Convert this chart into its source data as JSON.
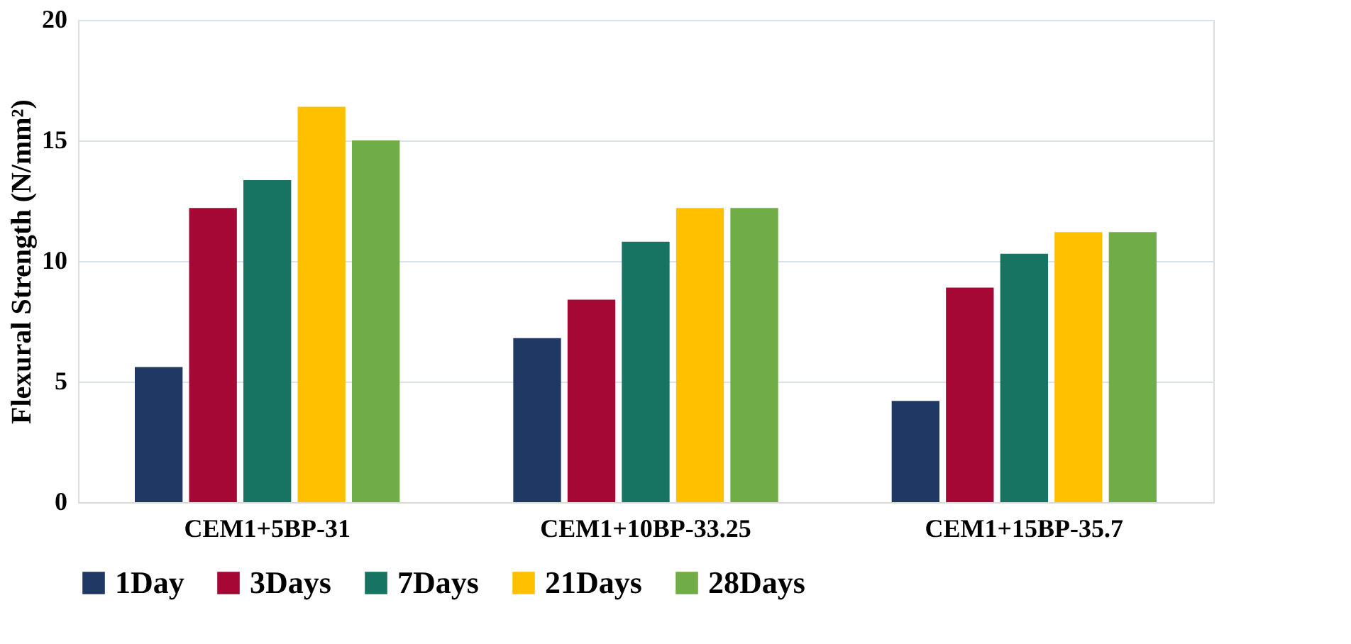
{
  "chart_data": {
    "type": "bar",
    "ylabel": "Flexural Strength (N/mm²)",
    "categories": [
      "CEM1+5BP-31",
      "CEM1+10BP-33.25",
      "CEM1+15BP-35.7"
    ],
    "series": [
      {
        "name": "1Day",
        "color": "#203864",
        "values": [
          5.6,
          6.8,
          4.2
        ]
      },
      {
        "name": "3Days",
        "color": "#a50834",
        "values": [
          12.2,
          8.4,
          8.9
        ]
      },
      {
        "name": "7Days",
        "color": "#187462",
        "values": [
          13.35,
          10.8,
          10.3
        ]
      },
      {
        "name": "21Days",
        "color": "#ffc000",
        "values": [
          16.4,
          12.2,
          11.2
        ]
      },
      {
        "name": "28Days",
        "color": "#70ad47",
        "values": [
          15.0,
          12.2,
          11.2
        ]
      }
    ],
    "ylim": [
      0,
      20
    ],
    "yticks": [
      0,
      5,
      10,
      15,
      20
    ],
    "grid": "y",
    "legend": "bottom"
  }
}
